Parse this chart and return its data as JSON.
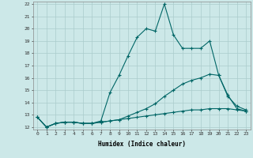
{
  "xlabel": "Humidex (Indice chaleur)",
  "background_color": "#cce8e8",
  "grid_color": "#aacccc",
  "line_color": "#006666",
  "xlim": [
    -0.5,
    23.5
  ],
  "ylim": [
    11.8,
    22.2
  ],
  "xticks": [
    0,
    1,
    2,
    3,
    4,
    5,
    6,
    7,
    8,
    9,
    10,
    11,
    12,
    13,
    14,
    15,
    16,
    17,
    18,
    19,
    20,
    21,
    22,
    23
  ],
  "yticks": [
    12,
    13,
    14,
    15,
    16,
    17,
    18,
    19,
    20,
    21,
    22
  ],
  "line1_x": [
    0,
    1,
    2,
    3,
    4,
    5,
    6,
    7,
    8,
    9,
    10,
    11,
    12,
    13,
    14,
    15,
    16,
    17,
    18,
    19,
    20,
    21,
    22,
    23
  ],
  "line1_y": [
    12.8,
    12.0,
    12.3,
    12.4,
    12.4,
    12.3,
    12.3,
    12.5,
    14.8,
    16.2,
    17.8,
    19.3,
    20.0,
    19.8,
    22.0,
    19.5,
    18.4,
    18.4,
    18.4,
    19.0,
    16.2,
    14.5,
    13.7,
    13.4
  ],
  "line2_x": [
    0,
    1,
    2,
    3,
    4,
    5,
    6,
    7,
    8,
    9,
    10,
    11,
    12,
    13,
    14,
    15,
    16,
    17,
    18,
    19,
    20,
    21,
    22,
    23
  ],
  "line2_y": [
    12.8,
    12.0,
    12.3,
    12.4,
    12.4,
    12.3,
    12.3,
    12.4,
    12.5,
    12.6,
    12.9,
    13.2,
    13.5,
    13.9,
    14.5,
    15.0,
    15.5,
    15.8,
    16.0,
    16.3,
    16.2,
    14.6,
    13.5,
    13.3
  ],
  "line3_x": [
    0,
    1,
    2,
    3,
    4,
    5,
    6,
    7,
    8,
    9,
    10,
    11,
    12,
    13,
    14,
    15,
    16,
    17,
    18,
    19,
    20,
    21,
    22,
    23
  ],
  "line3_y": [
    12.8,
    12.0,
    12.3,
    12.4,
    12.4,
    12.3,
    12.3,
    12.4,
    12.5,
    12.6,
    12.7,
    12.8,
    12.9,
    13.0,
    13.1,
    13.2,
    13.3,
    13.4,
    13.4,
    13.5,
    13.5,
    13.5,
    13.4,
    13.3
  ]
}
